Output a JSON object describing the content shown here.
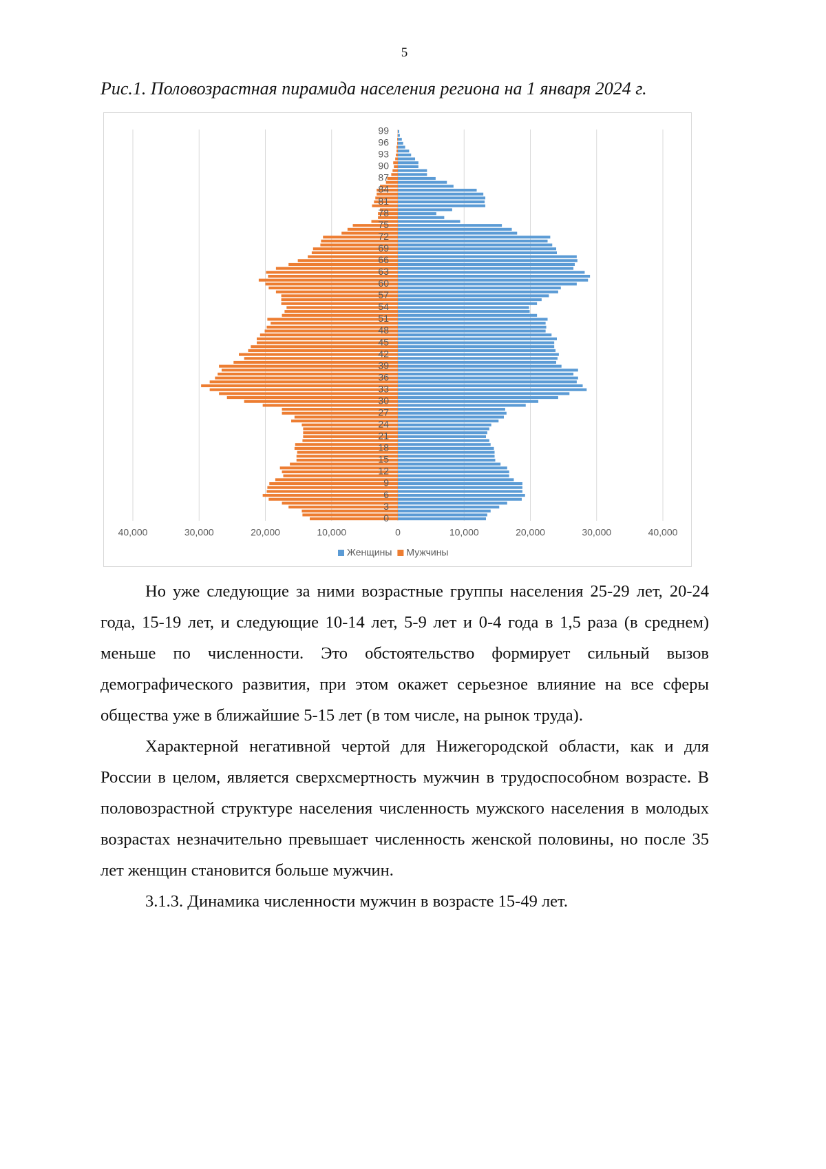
{
  "page_number": "5",
  "caption": "Рис.1. Половозрастная пирамида населения региона на 1 января 2024 г.",
  "chart_data": {
    "type": "bar",
    "orientation": "horizontal",
    "grid": true,
    "legend": "bottom",
    "categories": [
      "0",
      null,
      null,
      "3",
      null,
      null,
      "6",
      null,
      null,
      "9",
      null,
      null,
      "12",
      null,
      null,
      "15",
      null,
      null,
      "18",
      null,
      null,
      "21",
      null,
      null,
      "24",
      null,
      null,
      "27",
      null,
      null,
      "30",
      null,
      null,
      "33",
      null,
      null,
      "36",
      null,
      null,
      "39",
      null,
      null,
      "42",
      null,
      null,
      "45",
      null,
      null,
      "48",
      null,
      null,
      "51",
      null,
      null,
      "54",
      null,
      null,
      "57",
      null,
      null,
      "60",
      null,
      null,
      "63",
      null,
      null,
      "66",
      null,
      null,
      "69",
      null,
      null,
      "72",
      null,
      null,
      "75",
      null,
      null,
      "78",
      null,
      null,
      "81",
      null,
      null,
      "84",
      null,
      null,
      "87",
      null,
      null,
      "90",
      null,
      null,
      "93",
      null,
      null,
      "96",
      null,
      null,
      "99"
    ],
    "xlim": [
      -40000,
      40000
    ],
    "xticks": [
      {
        "value": -40000,
        "label": "40,000"
      },
      {
        "value": -30000,
        "label": "30,000"
      },
      {
        "value": -20000,
        "label": "20,000"
      },
      {
        "value": -10000,
        "label": "10,000"
      },
      0,
      {
        "value": 10000,
        "label": "10,000"
      },
      {
        "value": 20000,
        "label": "20,000"
      },
      {
        "value": 30000,
        "label": "30,000"
      },
      {
        "value": 40000,
        "label": "40,000"
      }
    ],
    "series": [
      {
        "name": "Женщины",
        "color": "#5b9bd5",
        "values": [
          13300,
          13500,
          14000,
          15300,
          16500,
          18700,
          19200,
          18800,
          18800,
          18800,
          17500,
          16800,
          16800,
          16500,
          15500,
          14700,
          14600,
          14600,
          14500,
          14000,
          13800,
          13300,
          13500,
          13800,
          14100,
          15200,
          16000,
          16400,
          16200,
          19300,
          21200,
          24200,
          25900,
          28500,
          27900,
          27000,
          27200,
          26500,
          27200,
          24700,
          23900,
          24100,
          24300,
          23800,
          23600,
          23600,
          24000,
          23200,
          22300,
          22400,
          22300,
          22600,
          21000,
          19900,
          19800,
          21000,
          21700,
          22800,
          24200,
          24600,
          27000,
          28700,
          29000,
          28200,
          26500,
          26700,
          27100,
          27000,
          24000,
          23900,
          23300,
          22600,
          23000,
          18000,
          17200,
          15700,
          9400,
          7000,
          5800,
          8200,
          13200,
          13100,
          13200,
          12900,
          11900,
          8400,
          7400,
          5700,
          4400,
          4400,
          3100,
          3100,
          2600,
          2000,
          1700,
          1100,
          800,
          600,
          300,
          200
        ]
      },
      {
        "name": "Мужчины",
        "color": "#ed7d31",
        "values": [
          -13300,
          -14400,
          -14500,
          -16500,
          -17500,
          -19500,
          -20400,
          -19800,
          -19700,
          -19400,
          -18500,
          -17300,
          -17500,
          -17800,
          -16300,
          -15300,
          -15300,
          -15200,
          -15600,
          -15500,
          -14400,
          -14300,
          -14300,
          -14300,
          -14500,
          -16100,
          -15600,
          -17500,
          -17500,
          -20400,
          -23200,
          -25800,
          -27000,
          -28400,
          -29700,
          -28400,
          -27600,
          -27200,
          -26600,
          -27000,
          -24800,
          -23200,
          -24000,
          -22600,
          -22200,
          -21300,
          -21300,
          -20800,
          -20100,
          -19800,
          -19200,
          -19700,
          -17500,
          -17100,
          -16800,
          -17600,
          -17600,
          -17600,
          -18400,
          -19500,
          -20000,
          -21000,
          -19600,
          -19900,
          -18400,
          -16500,
          -15100,
          -13600,
          -13000,
          -12800,
          -11700,
          -11600,
          -11300,
          -8500,
          -7600,
          -6800,
          -4000,
          -3000,
          -3000,
          -2700,
          -3900,
          -3600,
          -3400,
          -3200,
          -3200,
          -2700,
          -1800,
          -1600,
          -1000,
          -800,
          -600,
          -700,
          -400,
          -300,
          -200,
          -200,
          -100,
          -100,
          -50,
          -30
        ]
      }
    ]
  },
  "paragraphs": [
    "Но уже следующие за ними возрастные группы населения 25-29 лет, 20-24 года, 15-19 лет, и следующие 10-14 лет, 5-9 лет и 0-4 года в 1,5 раза (в среднем) меньше по численности. Это обстоятельство формирует сильный вызов демографического развития, при этом окажет серьезное влияние на все сферы общества уже в ближайшие 5-15 лет (в том числе, на рынок труда).",
    "Характерной негативной чертой для Нижегородской области, как и для России в целом, является сверхсмертность мужчин в трудоспособном возрасте. В половозрастной структуре населения численность мужского населения в молодых возрастах незначительно превышает численность женской половины, но после 35 лет женщин становится больше мужчин.",
    "3.1.3. Динамика численности мужчин в возрасте 15-49 лет."
  ]
}
